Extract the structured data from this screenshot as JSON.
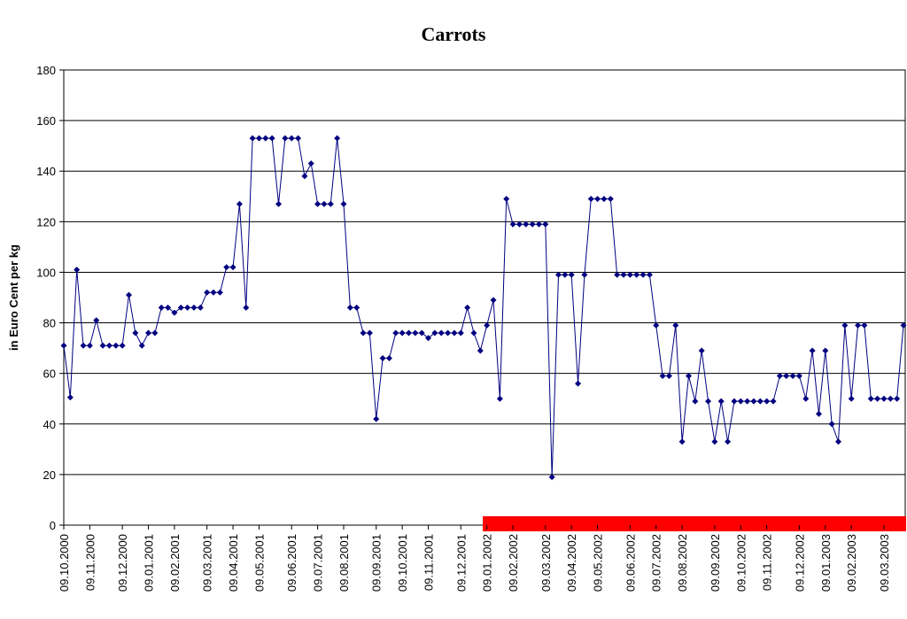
{
  "chart_data": {
    "type": "line",
    "title": "Carrots",
    "y_label": "in Euro Cent per kg",
    "categories": [
      "09.10.2000",
      null,
      null,
      null,
      "09.11.2000",
      null,
      null,
      null,
      null,
      "09.12.2000",
      null,
      null,
      null,
      "09.01.2001",
      null,
      null,
      null,
      "09.02.2001",
      null,
      null,
      null,
      null,
      "09.03.2001",
      null,
      null,
      null,
      "09.04.2001",
      null,
      null,
      null,
      "09.05.2001",
      null,
      null,
      null,
      null,
      "09.06.2001",
      null,
      null,
      null,
      "09.07.2001",
      null,
      null,
      null,
      "09.08.2001",
      null,
      null,
      null,
      null,
      "09.09.2001",
      null,
      null,
      null,
      "09.10.2001",
      null,
      null,
      null,
      "09.11.2001",
      null,
      null,
      null,
      null,
      "09.12.2001",
      null,
      null,
      null,
      "09.01.2002",
      null,
      null,
      null,
      "09.02.2002",
      null,
      null,
      null,
      null,
      "09.03.2002",
      null,
      null,
      null,
      "09.04.2002",
      null,
      null,
      null,
      "09.05.2002",
      null,
      null,
      null,
      null,
      "09.06.2002",
      null,
      null,
      null,
      "09.07.2002",
      null,
      null,
      null,
      "09.08.2002",
      null,
      null,
      null,
      null,
      "09.09.2002",
      null,
      null,
      null,
      "09.10.2002",
      null,
      null,
      null,
      "09.11.2002",
      null,
      null,
      null,
      null,
      "09.12.2002",
      null,
      null,
      null,
      "09.01.2003",
      null,
      null,
      null,
      "09.02.2003",
      null,
      null,
      null,
      null,
      "09.03.2003",
      null,
      null,
      null
    ],
    "series": [
      {
        "name": "Carrots",
        "color": "#000080",
        "values": [
          71,
          50.5,
          101,
          71,
          71,
          81,
          71,
          71,
          71,
          71,
          91,
          76,
          71,
          76,
          76,
          86,
          86,
          84,
          86,
          86,
          86,
          86,
          92,
          92,
          92,
          102,
          102,
          127,
          86,
          153,
          153,
          153,
          153,
          127,
          153,
          153,
          153,
          138,
          143,
          127,
          127,
          127,
          153,
          127,
          86,
          86,
          76,
          76,
          42,
          66,
          66,
          76,
          76,
          76,
          76,
          76,
          74,
          76,
          76,
          76,
          76,
          76,
          86,
          76,
          69,
          79,
          89,
          50,
          129,
          119,
          119,
          119,
          119,
          119,
          119,
          19,
          99,
          99,
          99,
          56,
          99,
          129,
          129,
          129,
          129,
          99,
          99,
          99,
          99,
          99,
          99,
          79,
          59,
          59,
          79,
          33,
          59,
          49,
          69,
          49,
          33,
          49,
          33,
          49,
          49,
          49,
          49,
          49,
          49,
          49,
          59,
          59,
          59,
          59,
          50,
          69,
          44,
          69,
          40,
          33,
          79,
          50,
          79,
          79,
          50,
          50,
          50,
          50,
          50,
          79
        ]
      }
    ],
    "ylim": [
      0,
      180
    ],
    "yticks": [
      0,
      20,
      40,
      60,
      80,
      100,
      120,
      140,
      160,
      180
    ],
    "grid": true
  }
}
